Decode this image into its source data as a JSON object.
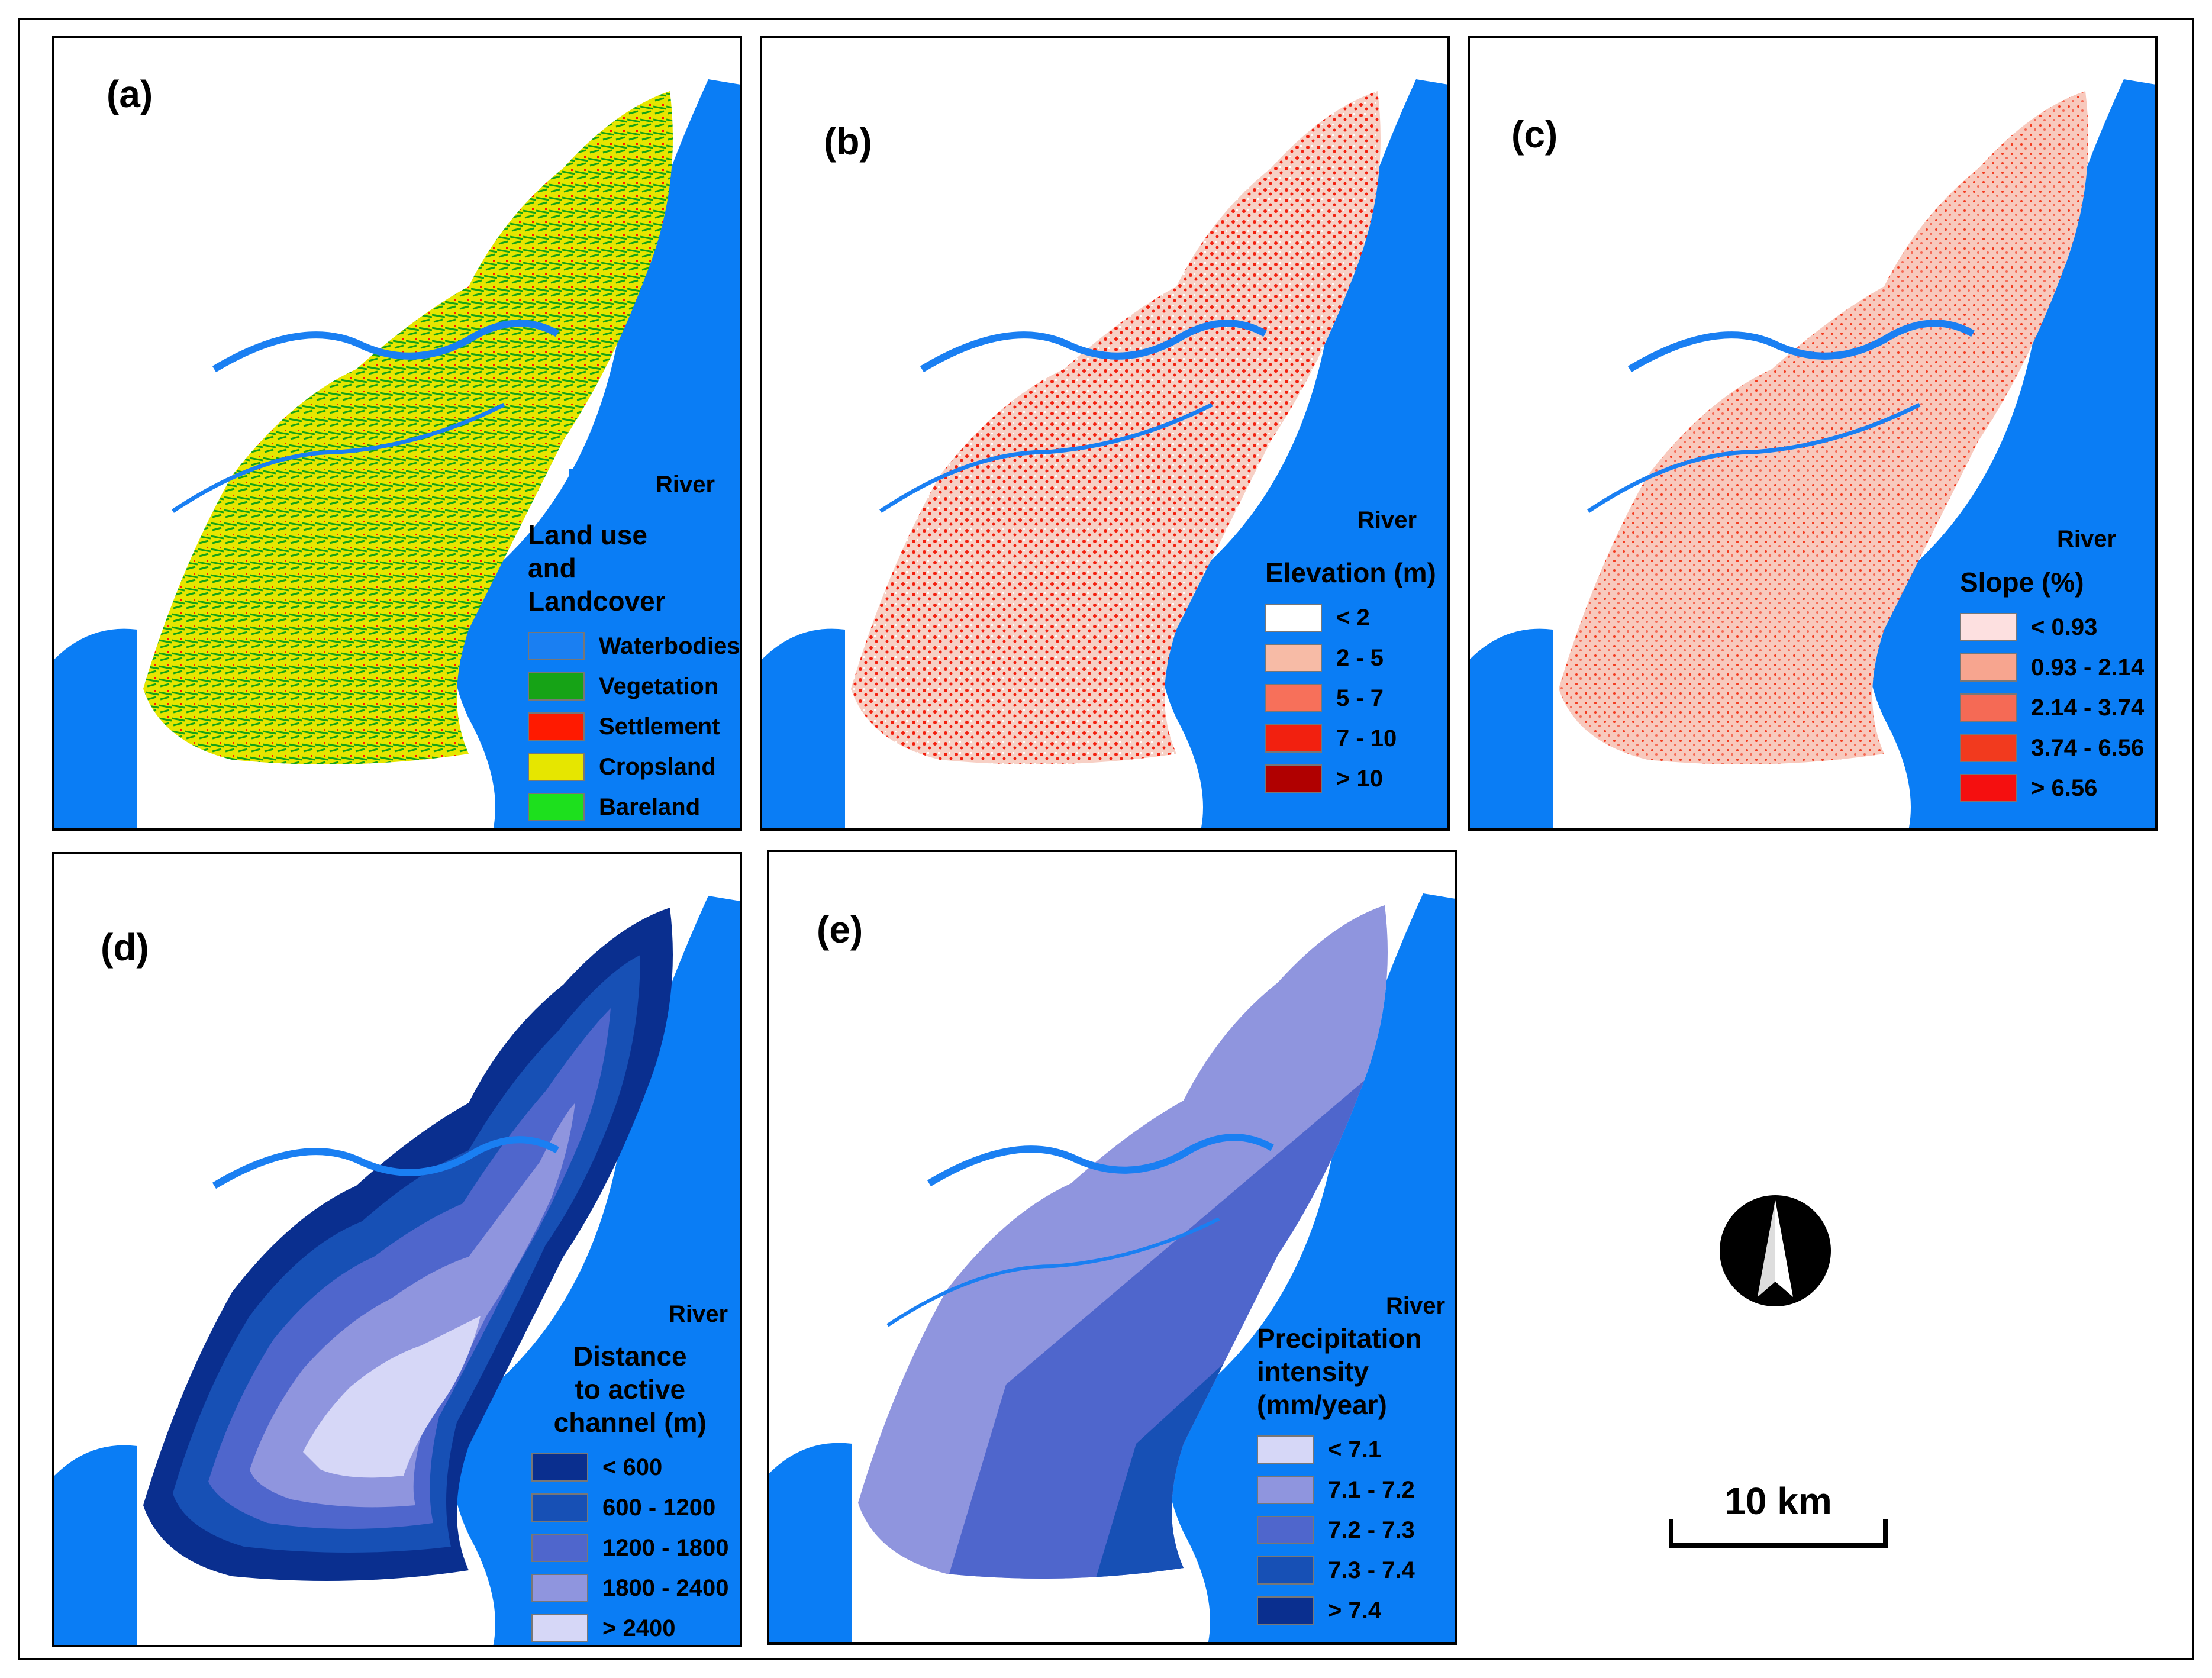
{
  "colors": {
    "river": "#0a7df5",
    "outline": "#000000"
  },
  "river_label": "River",
  "panels": [
    {
      "label": "(a)",
      "legend_title": "Land use\n and\nLandcover",
      "classes": [
        {
          "label": "Waterbodies",
          "color": "#1a7ff2"
        },
        {
          "label": "Vegetation",
          "color": "#16a316"
        },
        {
          "label": "Settlement",
          "color": "#ff1a00"
        },
        {
          "label": "Cropsland",
          "color": "#e6e600"
        },
        {
          "label": "Bareland",
          "color": "#1de01d"
        }
      ]
    },
    {
      "label": "(b)",
      "legend_title": "Elevation (m)",
      "classes": [
        {
          "label": "< 2",
          "color": "#ffffff"
        },
        {
          "label": "2 - 5",
          "color": "#f7bba6"
        },
        {
          "label": "5 - 7",
          "color": "#f7705a"
        },
        {
          "label": "7 - 10",
          "color": "#f2200f"
        },
        {
          "label": "> 10",
          "color": "#b00000"
        }
      ]
    },
    {
      "label": "(c)",
      "legend_title": "Slope (%)",
      "classes": [
        {
          "label": "< 0.93",
          "color": "#fde0e0"
        },
        {
          "label": "0.93 - 2.14",
          "color": "#f7a58f"
        },
        {
          "label": "2.14 - 3.74",
          "color": "#f56a55"
        },
        {
          "label": "3.74 - 6.56",
          "color": "#f23a1e"
        },
        {
          "label": "> 6.56",
          "color": "#f50f0f"
        }
      ]
    },
    {
      "label": "(d)",
      "legend_title": "Distance\nto active\nchannel (m)",
      "classes": [
        {
          "label": "< 600",
          "color": "#0a2f8f"
        },
        {
          "label": "600 - 1200",
          "color": "#1750b5"
        },
        {
          "label": "1200 - 1800",
          "color": "#4f66cc"
        },
        {
          "label": "1800 - 2400",
          "color": "#8f95de"
        },
        {
          "label": "> 2400",
          "color": "#d6d7f7"
        }
      ]
    },
    {
      "label": "(e)",
      "legend_title": "Precipitation\nintensity\n(mm/year)",
      "classes": [
        {
          "label": "< 7.1",
          "color": "#d6d7f7"
        },
        {
          "label": "7.1 - 7.2",
          "color": "#8f95de"
        },
        {
          "label": "7.2 - 7.3",
          "color": "#4f66cc"
        },
        {
          "label": "7.3 - 7.4",
          "color": "#1750b5"
        },
        {
          "label": "> 7.4",
          "color": "#0a2f8f"
        }
      ]
    }
  ],
  "north_arrow_icon": "north-arrow-icon",
  "scale_label": "10 km"
}
